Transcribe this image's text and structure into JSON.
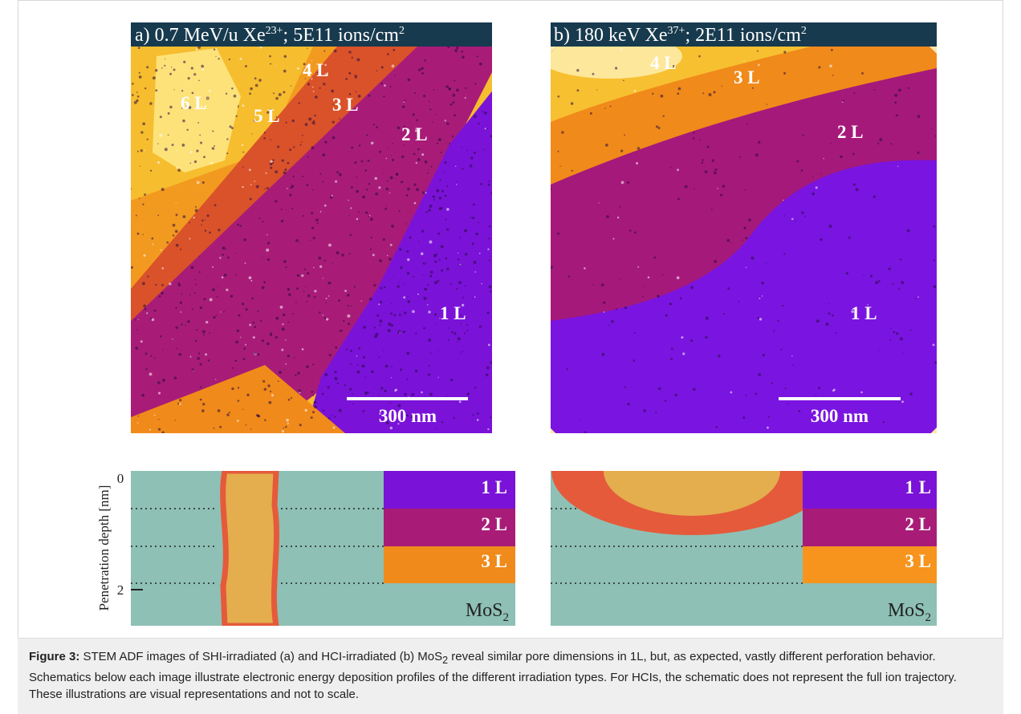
{
  "panel_a": {
    "title": {
      "prefix": "a) 0.7 MeV/u Xe",
      "charge": "23+",
      "middle": "; 5E11 ions/cm",
      "exp": "2"
    },
    "layers": [
      "6 L",
      "5 L",
      "4 L",
      "3 L",
      "2 L",
      "1 L"
    ],
    "scale_bar": "300 nm"
  },
  "panel_b": {
    "title": {
      "prefix": "b) 180 keV Xe",
      "charge": "37+",
      "middle": "; 2E11 ions/cm",
      "exp": "2"
    },
    "layers": [
      "4 L",
      "3 L",
      "2 L",
      "1 L"
    ],
    "scale_bar": "300 nm"
  },
  "schematic": {
    "axis_label": "Penetration depth [nm]",
    "ticks": [
      0,
      2
    ],
    "layers": [
      "1 L",
      "2 L",
      "3 L"
    ],
    "material": {
      "base": "MoS",
      "sub": "2"
    }
  },
  "caption": {
    "label": "Figure 3:",
    "text_1": " STEM ADF images of SHI-irradiated (a) and HCI-irradiated (b) MoS",
    "sub": "2",
    "text_2": " reveal similar pore dimensions in 1L, but, as expected, vastly different perforation behavior. Schematics below each image illustrate electronic energy deposition profiles of the different irradiation types. For HCIs, the schematic does not represent the full ion trajectory. These illustrations are visual representations and not to scale."
  }
}
